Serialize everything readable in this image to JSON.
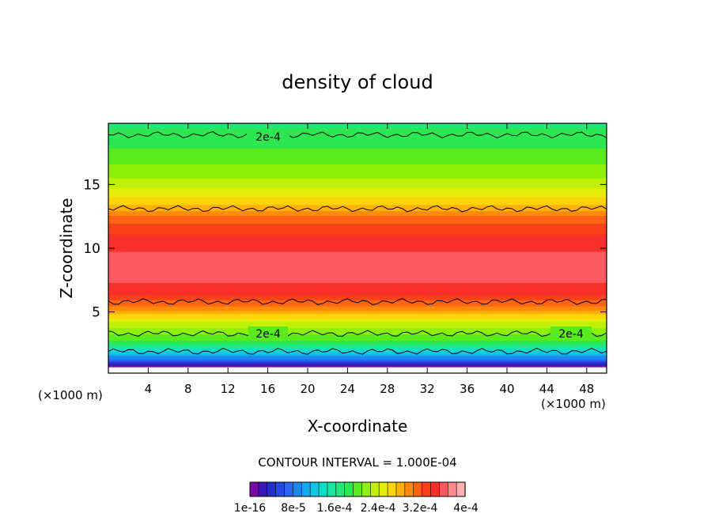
{
  "chart_data": {
    "type": "heatmap",
    "title": "density of cloud",
    "xlabel": "X-coordinate",
    "ylabel": "Z-coordinate",
    "x_unit_left": "(×1000 m)",
    "x_unit_right": "(×1000 m)",
    "xlim": [
      0,
      50
    ],
    "ylim": [
      0.2,
      19.8
    ],
    "x_ticks": [
      4,
      8,
      12,
      16,
      20,
      24,
      28,
      32,
      36,
      40,
      44,
      48
    ],
    "y_ticks": [
      5,
      10,
      15
    ],
    "contour_interval_text": "CONTOUR INTERVAL = 1.000E-04",
    "contour_labels": [
      "2e-4",
      "2e-4",
      "2e-4"
    ],
    "colorbar_labels": [
      "1e-16",
      "8e-5",
      "1.6e-4",
      "2.4e-4",
      "3.2e-4",
      "4e-4"
    ],
    "colorbar_colors": [
      "#7a0aa8",
      "#3a17b5",
      "#2230cc",
      "#2548e6",
      "#2a66f0",
      "#1f86f5",
      "#14a8ee",
      "#11c6e6",
      "#10dec9",
      "#19e6a3",
      "#22e67a",
      "#2ee652",
      "#5aeb1e",
      "#8ff00a",
      "#bef00a",
      "#e4ec0a",
      "#fbd40a",
      "#ffb10a",
      "#ff8a0c",
      "#ff6414",
      "#f7421a",
      "#f8302b",
      "#fb5a5f",
      "#fc8a8e",
      "#fdb0b0"
    ],
    "profile_z": [
      0.8,
      1.3,
      1.8,
      2.3,
      2.8,
      3.3,
      4.0,
      4.8,
      5.6,
      6.5,
      7.5,
      8.5,
      9.5,
      10.5,
      11.5,
      12.5,
      13.5,
      14.5,
      15.5,
      16.5,
      17.5,
      18.5,
      19.5
    ],
    "profile_value": [
      0.05,
      0.8,
      1.2,
      1.6,
      1.95,
      2.1,
      2.3,
      2.7,
      3.1,
      3.4,
      3.55,
      3.6,
      3.55,
      3.45,
      3.3,
      3.05,
      2.7,
      2.45,
      2.25,
      2.1,
      1.95,
      1.85,
      1.75
    ],
    "contour_levels_z": [
      1.9,
      3.3,
      5.8,
      13.1,
      18.9
    ]
  }
}
